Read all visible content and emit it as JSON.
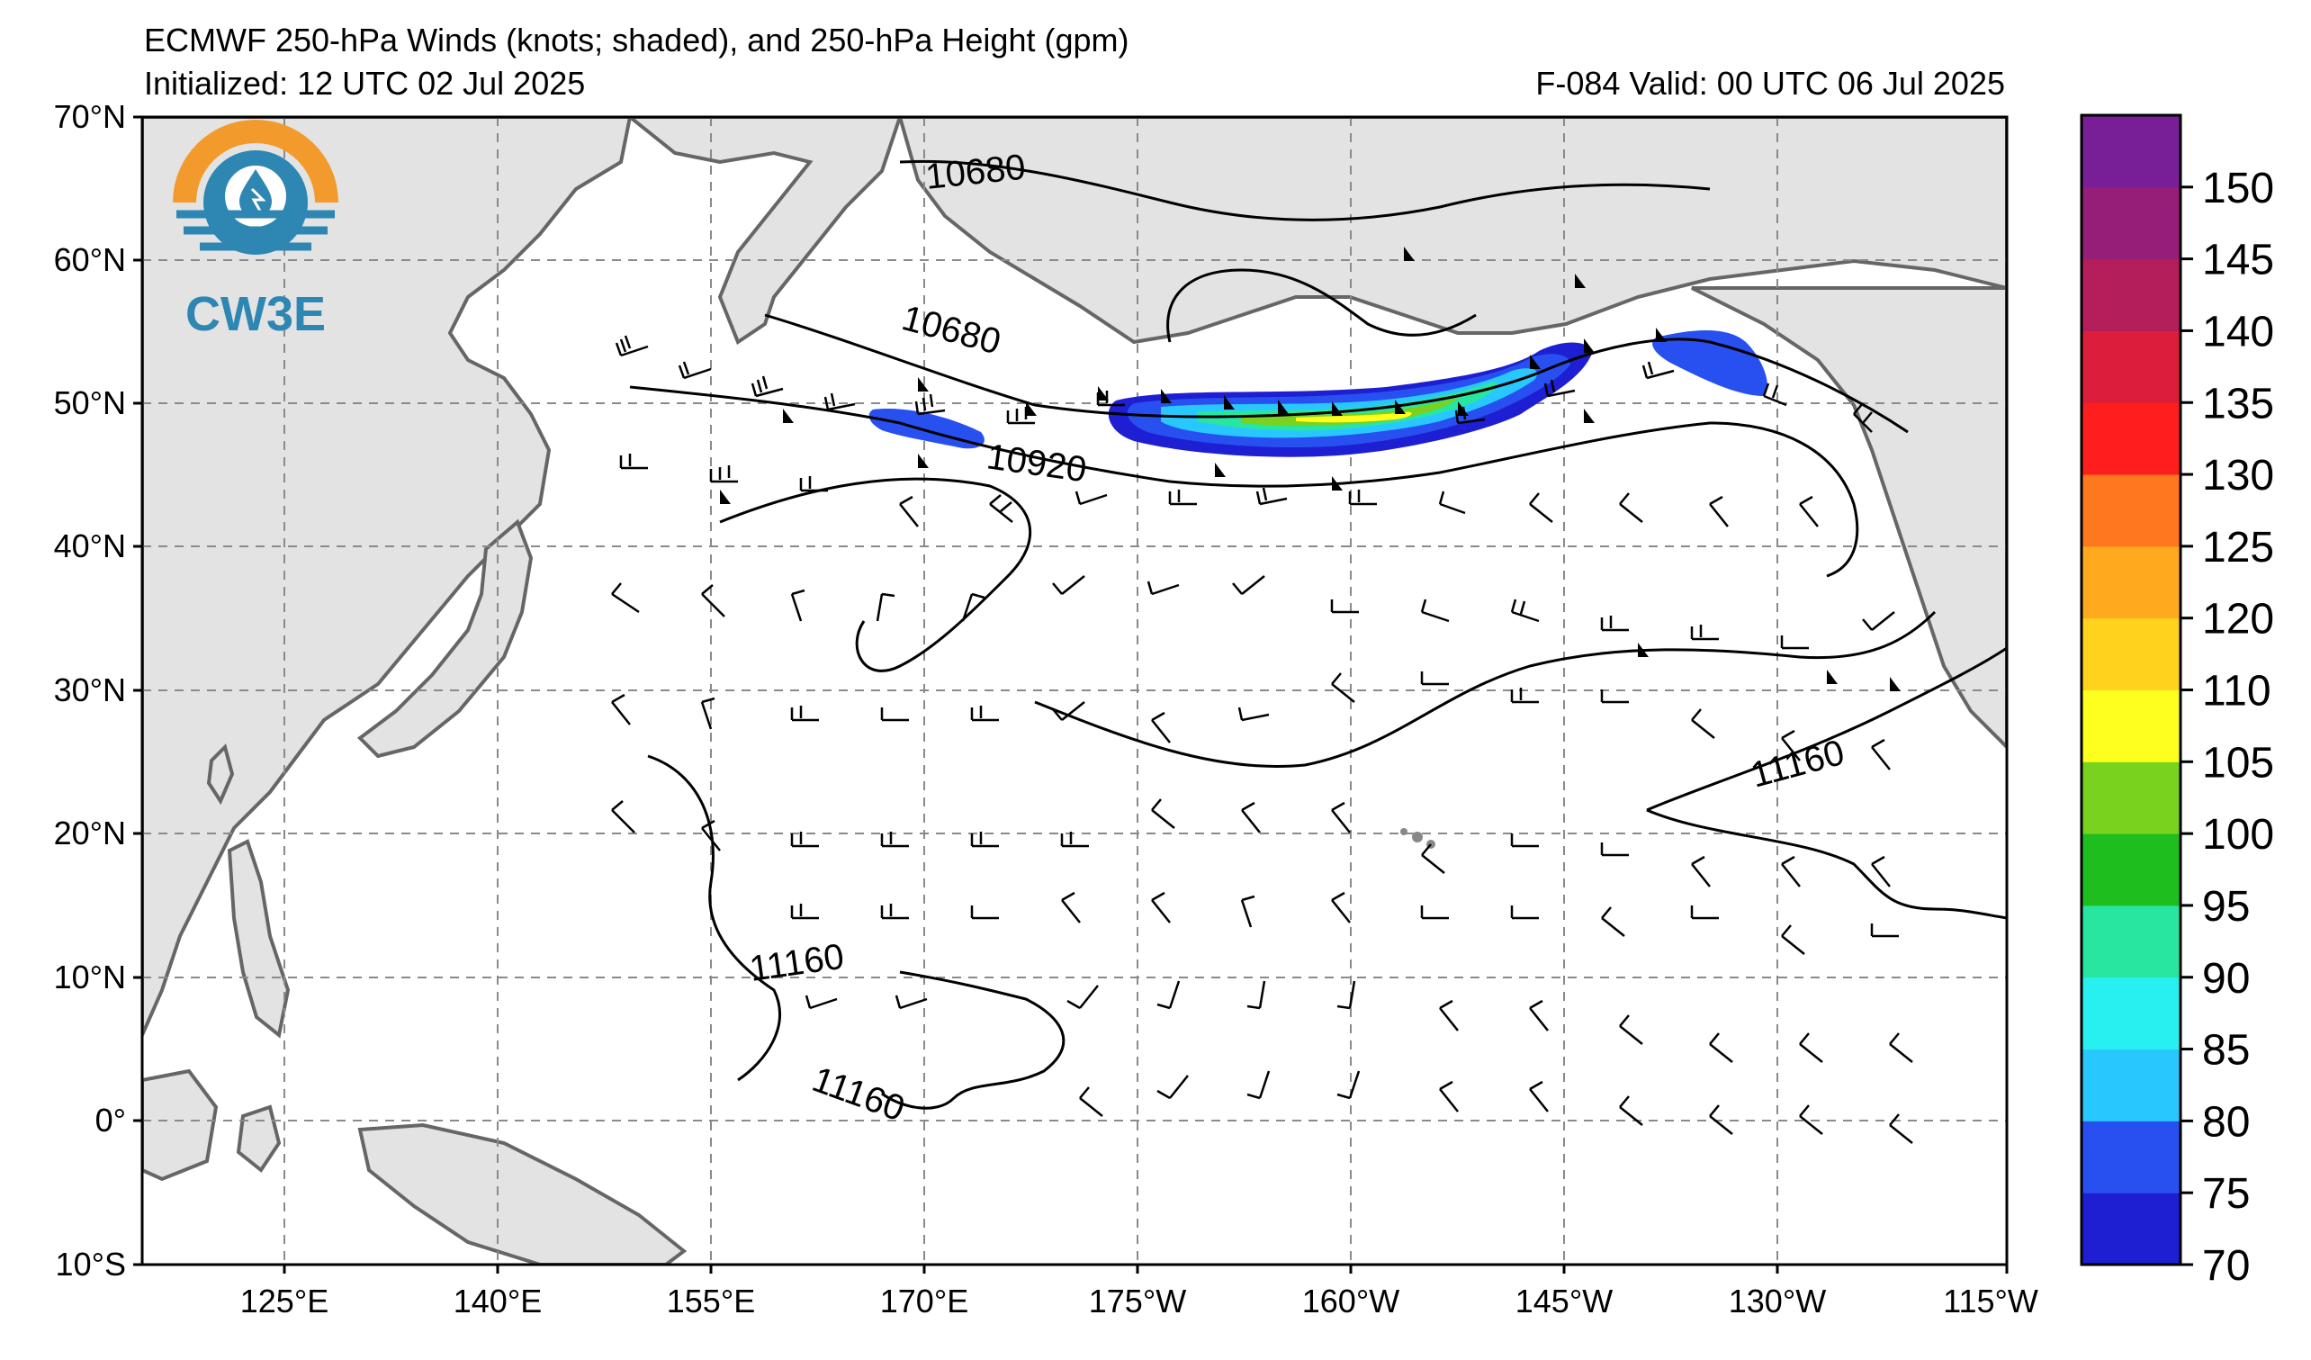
{
  "header": {
    "title": "ECMWF 250-hPa Winds (knots; shaded), and 250-hPa Height (gpm)",
    "initialized": "Initialized: 12 UTC 02 Jul 2025",
    "valid": "F-084  Valid: 00 UTC 06 Jul 2025"
  },
  "logo": {
    "text": "CW3E",
    "colors": {
      "orange": "#F39A2C",
      "blue": "#2E86B3"
    }
  },
  "axes": {
    "lat_labels": [
      "70°N",
      "60°N",
      "50°N",
      "40°N",
      "30°N",
      "20°N",
      "10°N",
      "0°",
      "10°S"
    ],
    "lon_labels": [
      "125°E",
      "140°E",
      "155°E",
      "170°E",
      "175°W",
      "160°W",
      "145°W",
      "130°W",
      "115°W"
    ]
  },
  "contours": {
    "labels": [
      "10680",
      "10680",
      "10920",
      "11160",
      "11160",
      "11160"
    ]
  },
  "colorbar": {
    "ticks": [
      "150",
      "145",
      "140",
      "135",
      "130",
      "125",
      "120",
      "110",
      "105",
      "100",
      "95",
      "90",
      "85",
      "80",
      "75",
      "70"
    ],
    "colors": [
      "#1E1ED2",
      "#2850F0",
      "#28C8FF",
      "#28F0F0",
      "#28E6A0",
      "#1EBE1E",
      "#78D21E",
      "#FFFF1E",
      "#FFD21E",
      "#FFAA1E",
      "#FF781E",
      "#FF1E1E",
      "#DC1E3C",
      "#B41E5A",
      "#961E78",
      "#781E96"
    ]
  }
}
